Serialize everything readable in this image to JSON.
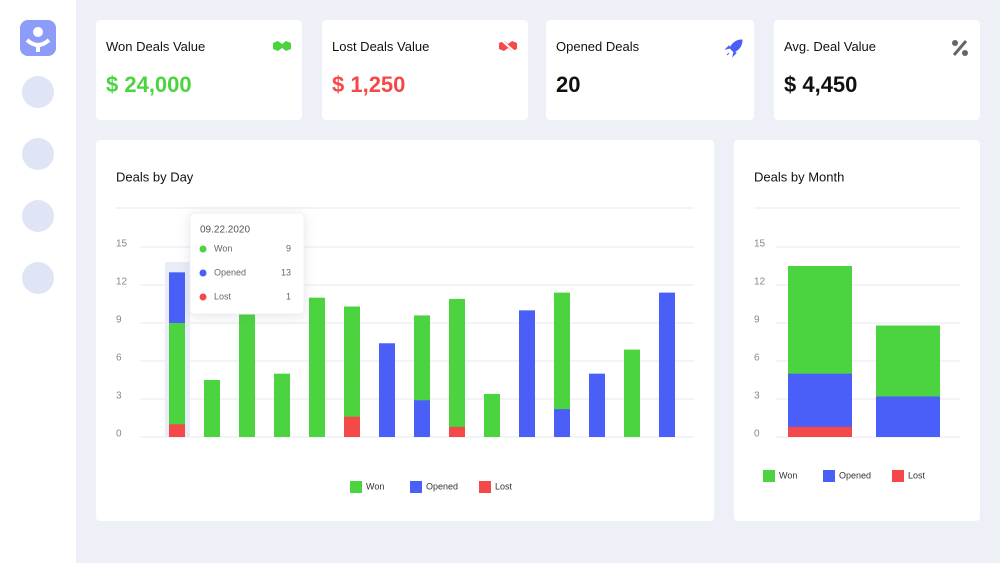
{
  "cards": [
    {
      "title": "Won Deals Value",
      "value": "$ 24,000"
    },
    {
      "title": "Lost Deals Value",
      "value": "$ 1,250"
    },
    {
      "title": "Opened Deals",
      "value": "20"
    },
    {
      "title": "Avg. Deal Value",
      "value": "$ 4,450"
    }
  ],
  "chart_data": [
    {
      "type": "bar",
      "title": "Deals by Day",
      "categories": [
        "09.22.2020",
        null,
        null,
        null,
        null,
        null,
        null,
        null,
        null,
        null,
        null,
        null,
        null,
        null,
        null
      ],
      "series": [
        {
          "name": "Won",
          "color": "#4cd440",
          "values": [
            9,
            4.5,
            10,
            5,
            11,
            10.3,
            0,
            9.6,
            10.9,
            3.4,
            0,
            11.4,
            0,
            6.9,
            0
          ]
        },
        {
          "name": "Opened",
          "color": "#4a5ff7",
          "values": [
            13,
            0,
            0,
            0,
            0,
            0,
            7.4,
            2.9,
            0,
            0,
            10,
            2.2,
            5,
            0,
            11.4
          ]
        },
        {
          "name": "Lost",
          "color": "#f54848",
          "values": [
            1,
            0,
            0,
            0,
            0,
            1.6,
            0,
            0,
            0.8,
            0,
            0,
            0,
            0,
            0,
            0
          ]
        }
      ],
      "ylim": [
        0,
        15
      ],
      "yticks": [
        0,
        3,
        6,
        9,
        12,
        15
      ],
      "grid": true
    },
    {
      "type": "bar",
      "title": "Deals by Month",
      "series": [
        {
          "name": "Won",
          "color": "#4cd440",
          "values": [
            13.5,
            8.8
          ]
        },
        {
          "name": "Opened",
          "color": "#4a5ff7",
          "values": [
            5,
            3.2
          ]
        },
        {
          "name": "Lost",
          "color": "#f54848",
          "values": [
            0.8,
            0
          ]
        }
      ],
      "ylim": [
        0,
        15
      ],
      "yticks": [
        0,
        3,
        6,
        9,
        12,
        15
      ],
      "grid": true
    }
  ]
}
